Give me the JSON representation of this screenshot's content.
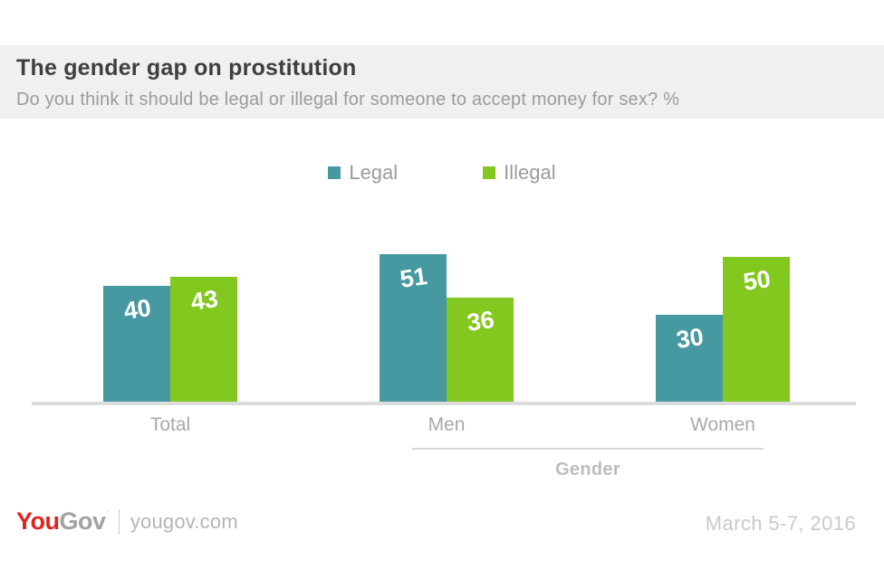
{
  "header": {
    "title": "The gender gap on prostitution",
    "subtitle": "Do you think it should be legal or illegal for someone to accept money for sex? %"
  },
  "chart_data": {
    "type": "bar",
    "categories": [
      "Total",
      "Men",
      "Women"
    ],
    "series": [
      {
        "name": "Legal",
        "color": "#4699a0",
        "values": [
          40,
          51,
          30
        ]
      },
      {
        "name": "Illegal",
        "color": "#82c81e",
        "values": [
          43,
          36,
          50
        ]
      }
    ],
    "title": "The gender gap on prostitution",
    "xlabel": "Gender",
    "ylabel": "",
    "ylim": [
      0,
      55
    ],
    "grid": false,
    "legend_position": "top-center",
    "bar_label_color": "#ffffff"
  },
  "footer": {
    "logo_you": "You",
    "logo_gov": "Gov",
    "site": "yougov.com",
    "date": "March 5-7, 2016"
  },
  "colors": {
    "header_background": "#f0f0ee",
    "title_text": "#3f3f3f",
    "muted_text": "#9b9b9b",
    "axis_line": "#dcdcdc",
    "legal_teal": "#4699a0",
    "illegal_green": "#82c81e",
    "logo_red": "#e2231d"
  }
}
